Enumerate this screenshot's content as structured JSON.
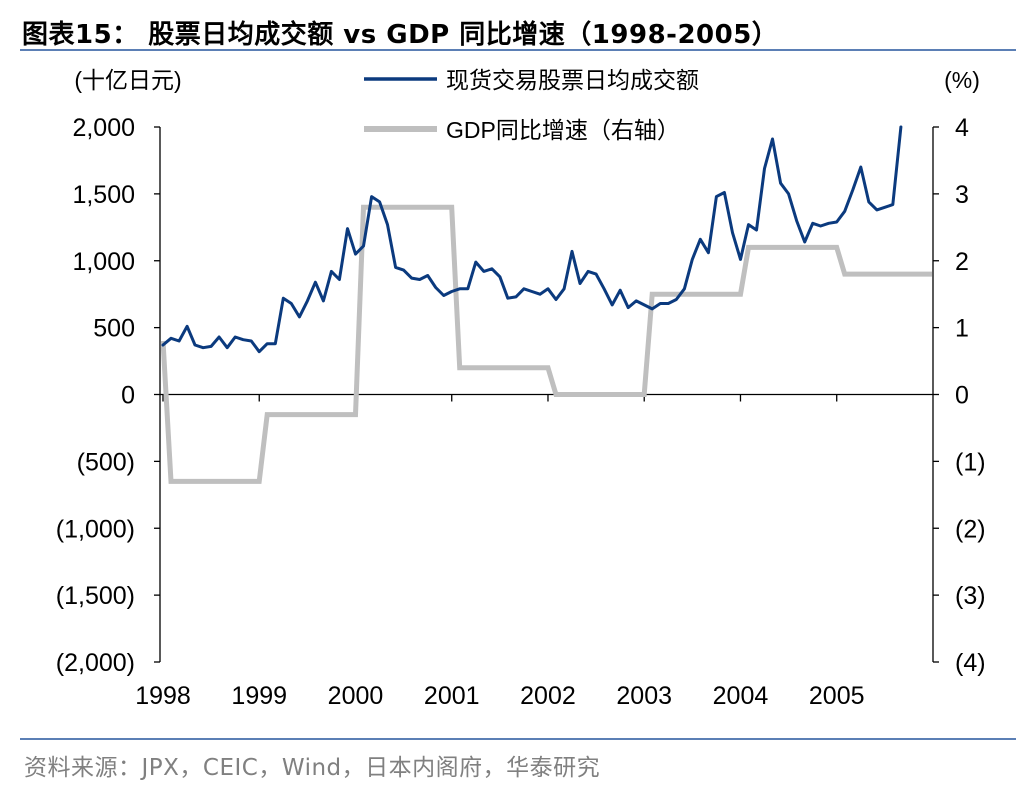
{
  "title": "图表15：  股票日均成交额 vs GDP 同比增速（1998-2005）",
  "source": "资料来源：JPX，CEIC，Wind，日本内阁府，华泰研究",
  "colors": {
    "series_stock": "#0b3a7e",
    "series_gdp": "#bfbfbf",
    "rule": "#5b7fb5",
    "axis": "#000000"
  },
  "chart_data": {
    "type": "line",
    "left_unit": "(十亿日元)",
    "right_unit": "(%)",
    "ylim": [
      -2000,
      2000
    ],
    "y2lim": [
      -4,
      4
    ],
    "left_ticks": [
      2000,
      1500,
      1000,
      500,
      0,
      -500,
      -1000,
      -1500,
      -2000
    ],
    "left_tick_labels": [
      "2,000",
      "1,500",
      "1,000",
      "500",
      "0",
      "(500)",
      "(1,000)",
      "(1,500)",
      "(2,000)"
    ],
    "right_ticks": [
      4,
      3,
      2,
      1,
      0,
      -1,
      -2,
      -3,
      -4
    ],
    "right_tick_labels": [
      "4",
      "3",
      "2",
      "1",
      "0",
      "(1)",
      "(2)",
      "(3)",
      "(4)"
    ],
    "x_ticks": [
      1998,
      1999,
      2000,
      2001,
      2002,
      2003,
      2004,
      2005
    ],
    "xlim": [
      1998.0,
      2005.99
    ],
    "legend_position": "top-center",
    "series": [
      {
        "name": "现货交易股票日均成交额",
        "axis": "left",
        "x": [
          1998.0,
          1998.083,
          1998.167,
          1998.25,
          1998.333,
          1998.417,
          1998.5,
          1998.583,
          1998.667,
          1998.75,
          1998.833,
          1998.917,
          1999.0,
          1999.083,
          1999.167,
          1999.25,
          1999.333,
          1999.417,
          1999.5,
          1999.583,
          1999.667,
          1999.75,
          1999.833,
          1999.917,
          2000.0,
          2000.083,
          2000.167,
          2000.25,
          2000.333,
          2000.417,
          2000.5,
          2000.583,
          2000.667,
          2000.75,
          2000.833,
          2000.917,
          2001.0,
          2001.083,
          2001.167,
          2001.25,
          2001.333,
          2001.417,
          2001.5,
          2001.583,
          2001.667,
          2001.75,
          2001.833,
          2001.917,
          2002.0,
          2002.083,
          2002.167,
          2002.25,
          2002.333,
          2002.417,
          2002.5,
          2002.583,
          2002.667,
          2002.75,
          2002.833,
          2002.917,
          2003.0,
          2003.083,
          2003.167,
          2003.25,
          2003.333,
          2003.417,
          2003.5,
          2003.583,
          2003.667,
          2003.75,
          2003.833,
          2003.917,
          2004.0,
          2004.083,
          2004.167,
          2004.25,
          2004.333,
          2004.417,
          2004.5,
          2004.583,
          2004.667,
          2004.75,
          2004.833,
          2004.917,
          2005.0,
          2005.083,
          2005.167,
          2005.25,
          2005.333,
          2005.417,
          2005.5,
          2005.583,
          2005.667
        ],
        "values": [
          370,
          420,
          400,
          510,
          370,
          350,
          360,
          430,
          350,
          430,
          410,
          400,
          320,
          380,
          380,
          720,
          680,
          580,
          700,
          840,
          700,
          920,
          860,
          1240,
          1050,
          1110,
          1480,
          1440,
          1270,
          950,
          930,
          870,
          860,
          890,
          800,
          740,
          770,
          790,
          790,
          990,
          920,
          940,
          880,
          720,
          730,
          790,
          770,
          750,
          790,
          710,
          790,
          1070,
          830,
          920,
          900,
          790,
          670,
          780,
          650,
          700,
          670,
          640,
          680,
          680,
          710,
          790,
          1010,
          1160,
          1060,
          1480,
          1510,
          1210,
          1010,
          1270,
          1230,
          1690,
          1910,
          1580,
          1500,
          1300,
          1140,
          1280,
          1260,
          1280,
          1290,
          1370,
          1530,
          1700,
          1440,
          1380,
          1400,
          1420,
          2000
        ]
      },
      {
        "name": "GDP同比增速（右轴）",
        "axis": "right",
        "x": [
          1998.0,
          1998.083,
          1999.0,
          1999.083,
          2000.0,
          2000.083,
          2001.0,
          2001.083,
          2002.0,
          2002.083,
          2003.0,
          2003.083,
          2004.0,
          2004.083,
          2005.0,
          2005.083,
          2005.99
        ],
        "values": [
          0.8,
          -1.3,
          -1.3,
          -0.3,
          -0.3,
          2.8,
          2.8,
          0.4,
          0.4,
          0.0,
          0.0,
          1.5,
          1.5,
          2.2,
          2.2,
          1.8,
          1.8
        ]
      }
    ]
  }
}
